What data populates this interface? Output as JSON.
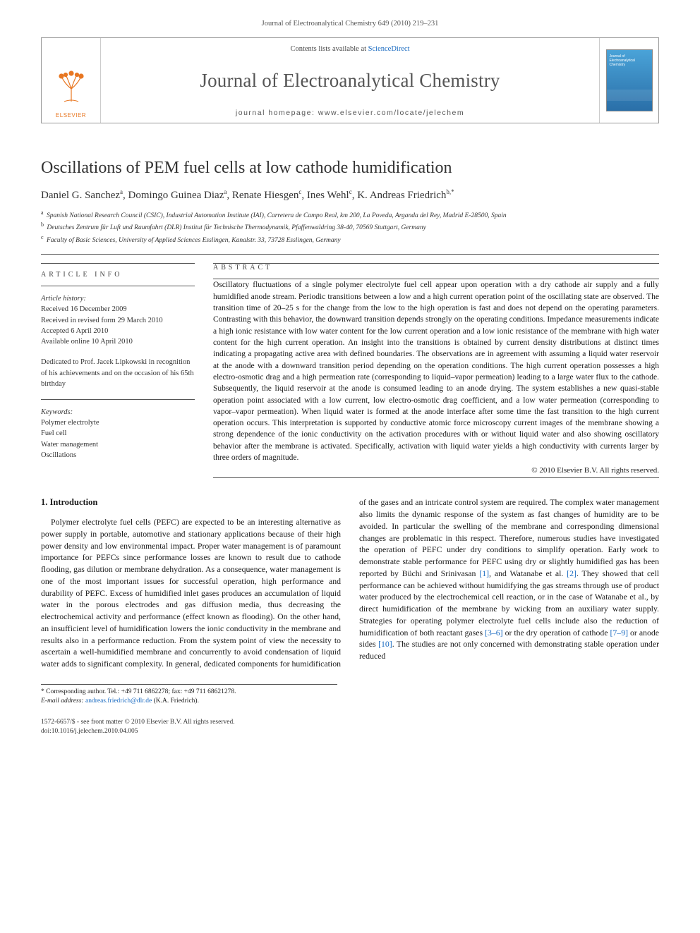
{
  "running_head": "Journal of Electroanalytical Chemistry 649 (2010) 219–231",
  "masthead": {
    "contents_prefix": "Contents lists available at ",
    "contents_link": "ScienceDirect",
    "journal_title": "Journal of Electroanalytical Chemistry",
    "homepage_label": "journal homepage: www.elsevier.com/locate/jelechem",
    "publisher_logo_text": "ELSEVIER",
    "publisher_logo_color": "#e87722",
    "cover_title": "Journal of Electroanalytical Chemistry"
  },
  "article": {
    "title": "Oscillations of PEM fuel cells at low cathode humidification",
    "authors_html": "Daniel G. Sanchez<sup>a</sup>, Domingo Guinea Diaz<sup>a</sup>, Renate Hiesgen<sup>c</sup>, Ines Wehl<sup>c</sup>, K. Andreas Friedrich<sup>b,*</sup>",
    "affiliations": [
      {
        "key": "a",
        "text": "Spanish National Research Council (CSIC), Industrial Automation Institute (IAI), Carretera de Campo Real, km 200, La Poveda, Arganda del Rey, Madrid E-28500, Spain"
      },
      {
        "key": "b",
        "text": "Deutsches Zentrum für Luft und Raumfahrt (DLR) Institut für Technische Thermodynamik, Pfaffenwaldring 38-40, 70569 Stuttgart, Germany"
      },
      {
        "key": "c",
        "text": "Faculty of Basic Sciences, University of Applied Sciences Esslingen, Kanalstr. 33, 73728 Esslingen, Germany"
      }
    ]
  },
  "article_info": {
    "heading": "ARTICLE INFO",
    "history_label": "Article history:",
    "history": [
      "Received 16 December 2009",
      "Received in revised form 29 March 2010",
      "Accepted 6 April 2010",
      "Available online 10 April 2010"
    ],
    "dedication": "Dedicated to Prof. Jacek Lipkowski in recognition of his achievements and on the occasion of his 65th birthday",
    "keywords_label": "Keywords:",
    "keywords": [
      "Polymer electrolyte",
      "Fuel cell",
      "Water management",
      "Oscillations"
    ]
  },
  "abstract": {
    "heading": "ABSTRACT",
    "text": "Oscillatory fluctuations of a single polymer electrolyte fuel cell appear upon operation with a dry cathode air supply and a fully humidified anode stream. Periodic transitions between a low and a high current operation point of the oscillating state are observed. The transition time of 20–25 s for the change from the low to the high operation is fast and does not depend on the operating parameters. Contrasting with this behavior, the downward transition depends strongly on the operating conditions. Impedance measurements indicate a high ionic resistance with low water content for the low current operation and a low ionic resistance of the membrane with high water content for the high current operation. An insight into the transitions is obtained by current density distributions at distinct times indicating a propagating active area with defined boundaries. The observations are in agreement with assuming a liquid water reservoir at the anode with a downward transition period depending on the operation conditions. The high current operation possesses a high electro-osmotic drag and a high permeation rate (corresponding to liquid–vapor permeation) leading to a large water flux to the cathode. Subsequently, the liquid reservoir at the anode is consumed leading to an anode drying. The system establishes a new quasi-stable operation point associated with a low current, low electro-osmotic drag coefficient, and a low water permeation (corresponding to vapor–vapor permeation). When liquid water is formed at the anode interface after some time the fast transition to the high current operation occurs. This interpretation is supported by conductive atomic force microscopy current images of the membrane showing a strong dependence of the ionic conductivity on the activation procedures with or without liquid water and also showing oscillatory behavior after the membrane is activated. Specifically, activation with liquid water yields a high conductivity with currents larger by three orders of magnitude.",
    "copyright": "© 2010 Elsevier B.V. All rights reserved."
  },
  "body": {
    "section_heading": "1. Introduction",
    "col1": "Polymer electrolyte fuel cells (PEFC) are expected to be an interesting alternative as power supply in portable, automotive and stationary applications because of their high power density and low environmental impact. Proper water management is of paramount importance for PEFCs since performance losses are known to result due to cathode flooding, gas dilution or membrane dehydration. As a consequence, water management is one of the most important issues for successful operation, high performance and durability of PEFC. Excess of humidified inlet gases produces an accumulation of liquid water in the porous electrodes and gas diffusion media, thus decreasing the electrochemical activity and performance (effect known as flooding). On the other hand, an insufficient level of humidification lowers the ionic conductivity in the membrane and results also in a performance reduction. From the system point of view the necessity to ascertain a well-humidified membrane and",
    "col2_parts": [
      "concurrently to avoid condensation of liquid water adds to significant complexity. In general, dedicated components for humidification of the gases and an intricate control system are required. The complex water management also limits the dynamic response of the system as fast changes of humidity are to be avoided. In particular the swelling of the membrane and corresponding dimensional changes are problematic in this respect. Therefore, numerous studies have investigated the operation of PEFC under dry conditions to simplify operation. Early work to demonstrate stable performance for PEFC using dry or slightly humidified gas has been reported by Büchi and Srinivasan ",
      "[1]",
      ", and Watanabe et al. ",
      "[2]",
      ". They showed that cell performance can be achieved without humidifying the gas streams through use of product water produced by the electrochemical cell reaction, or in the case of Watanabe et al., by direct humidification of the membrane by wicking from an auxiliary water supply. Strategies for operating polymer electrolyte fuel cells include also the reduction of humidification of both reactant gases ",
      "[3–6]",
      " or the dry operation of cathode ",
      "[7–9]",
      " or anode sides ",
      "[10]",
      ". The studies are not only concerned with demonstrating stable operation under reduced"
    ]
  },
  "footnote": {
    "corr_label": "* Corresponding author. Tel.: +49 711 6862278; fax: +49 711 68621278.",
    "email_label": "E-mail address:",
    "email": "andreas.friedrich@dlr.de",
    "email_owner": "(K.A. Friedrich)."
  },
  "bottom": {
    "line1": "1572-6657/$ - see front matter © 2010 Elsevier B.V. All rights reserved.",
    "line2": "doi:10.1016/j.jelechem.2010.04.005"
  },
  "colors": {
    "link": "#1769c0",
    "text": "#1a1a1a",
    "rule": "#555555",
    "publisher": "#e87722"
  }
}
